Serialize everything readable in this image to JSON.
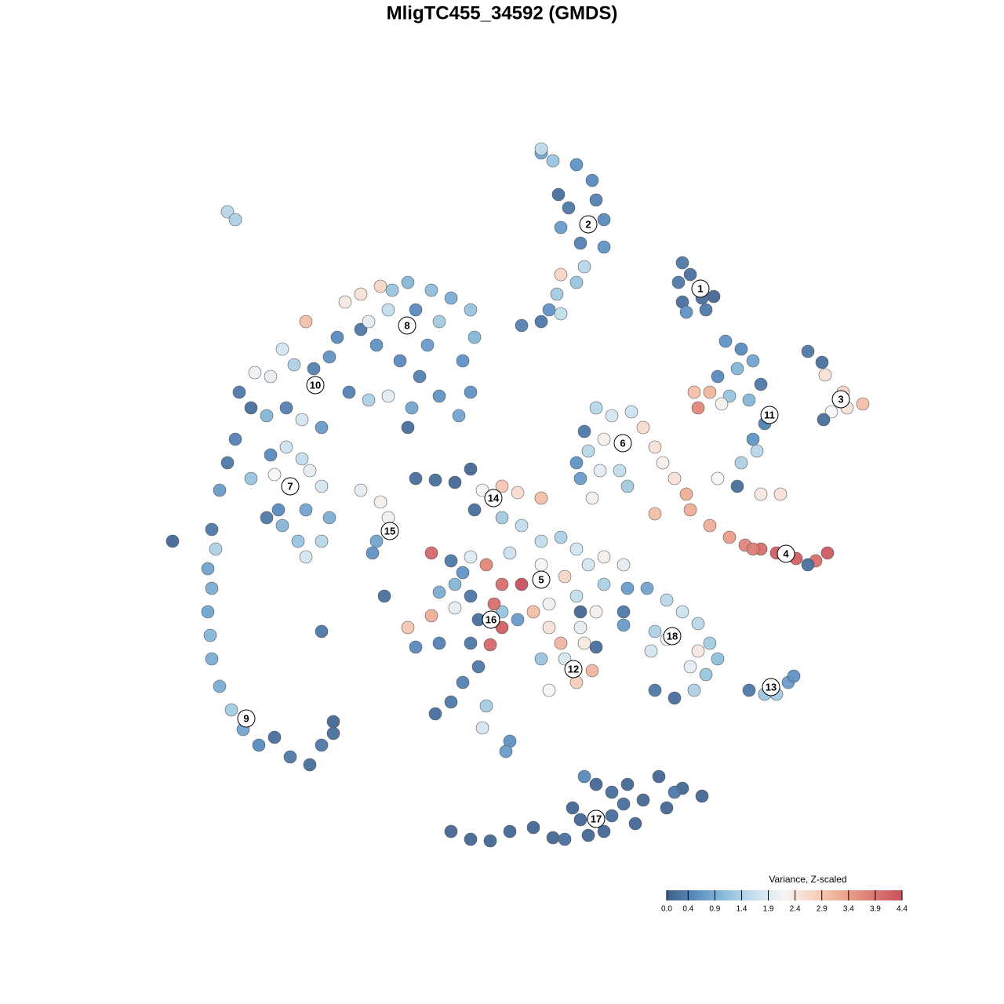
{
  "chart_data": {
    "type": "scatter",
    "title": "MligTC455_34592 (GMDS)",
    "xlim": [
      0,
      1280
    ],
    "ylim": [
      1280,
      0
    ],
    "x": [
      870,
      880,
      865,
      895,
      910,
      870,
      900,
      875,
      690,
      705,
      735,
      755,
      760,
      770,
      725,
      715,
      740,
      770,
      745,
      715,
      735,
      710,
      700,
      715,
      690,
      665,
      690,
      712,
      1030,
      1048,
      1052,
      1075,
      1100,
      1080,
      1060,
      1050,
      925,
      945,
      960,
      940,
      915,
      930,
      955,
      970,
      975,
      960,
      965,
      945,
      915,
      940,
      970,
      995,
      885,
      905,
      890,
      920,
      860,
      875,
      880,
      835,
      905,
      930,
      950,
      970,
      990,
      1015,
      1040,
      1055,
      1030,
      960,
      760,
      780,
      805,
      820,
      835,
      845,
      770,
      750,
      735,
      745,
      790,
      800,
      765,
      740,
      755,
      390,
      440,
      460,
      485,
      500,
      520,
      550,
      575,
      600,
      605,
      590,
      600,
      585,
      560,
      535,
      510,
      480,
      460,
      430,
      420,
      400,
      375,
      360,
      345,
      325,
      305,
      320,
      340,
      365,
      385,
      410,
      445,
      470,
      495,
      525,
      545,
      560,
      530,
      495,
      470,
      300,
      290,
      280,
      320,
      345,
      365,
      385,
      395,
      410,
      350,
      355,
      360,
      390,
      420,
      410,
      390,
      380,
      340,
      220,
      270,
      275,
      265,
      270,
      265,
      268,
      270,
      280,
      295,
      310,
      330,
      350,
      370,
      395,
      410,
      425,
      425,
      460,
      485,
      495,
      480,
      475,
      530,
      555,
      580,
      600,
      615,
      640,
      660,
      690,
      605,
      640,
      665,
      690,
      715,
      650,
      600,
      620,
      550,
      575,
      590,
      580,
      560,
      600,
      640,
      665,
      690,
      720,
      735,
      700,
      680,
      660,
      640,
      630,
      610,
      640,
      600,
      625,
      560,
      530,
      520,
      550,
      580,
      700,
      715,
      720,
      745,
      760,
      740,
      700,
      735,
      755,
      690,
      610,
      590,
      575,
      555,
      620,
      615,
      650,
      645,
      740,
      760,
      750,
      770,
      795,
      770,
      735,
      800,
      825,
      850,
      870,
      890,
      905,
      915,
      900,
      885,
      860,
      835,
      830,
      850,
      835,
      795,
      795,
      880,
      890,
      955,
      975,
      990,
      1005,
      1012,
      575,
      600,
      625,
      650,
      680,
      705,
      720,
      740,
      745,
      760,
      780,
      800,
      820,
      840,
      850,
      870,
      895,
      860,
      810,
      780,
      750,
      770,
      730,
      795,
      290,
      300,
      410,
      490,
      520
    ],
    "y": [
      335,
      350,
      360,
      380,
      378,
      385,
      395,
      398,
      195,
      205,
      210,
      230,
      255,
      280,
      265,
      290,
      310,
      315,
      340,
      350,
      360,
      375,
      395,
      400,
      410,
      415,
      190,
      248,
      448,
      462,
      478,
      500,
      515,
      520,
      525,
      535,
      435,
      445,
      460,
      470,
      480,
      505,
      510,
      490,
      540,
      560,
      575,
      590,
      610,
      620,
      630,
      630,
      500,
      500,
      520,
      515,
      610,
      630,
      650,
      655,
      670,
      685,
      695,
      700,
      705,
      712,
      715,
      705,
      720,
      700,
      520,
      530,
      525,
      545,
      570,
      590,
      560,
      575,
      590,
      550,
      600,
      620,
      600,
      610,
      635,
      410,
      385,
      375,
      365,
      370,
      360,
      370,
      380,
      395,
      430,
      460,
      500,
      530,
      505,
      480,
      460,
      440,
      420,
      430,
      455,
      470,
      465,
      445,
      480,
      475,
      500,
      520,
      530,
      520,
      535,
      545,
      500,
      510,
      505,
      520,
      440,
      410,
      395,
      395,
      410,
      560,
      590,
      625,
      610,
      580,
      570,
      585,
      600,
      620,
      605,
      650,
      670,
      650,
      660,
      690,
      710,
      690,
      660,
      690,
      675,
      700,
      725,
      750,
      780,
      810,
      840,
      875,
      905,
      930,
      950,
      940,
      965,
      975,
      950,
      935,
      920,
      625,
      640,
      660,
      690,
      705,
      610,
      612,
      615,
      598,
      625,
      620,
      628,
      635,
      650,
      660,
      670,
      690,
      685,
      705,
      710,
      720,
      705,
      715,
      730,
      745,
      755,
      760,
      745,
      745,
      720,
      735,
      760,
      770,
      780,
      790,
      780,
      770,
      790,
      800,
      820,
      822,
      820,
      825,
      800,
      785,
      775,
      800,
      820,
      840,
      820,
      825,
      800,
      880,
      870,
      855,
      840,
      850,
      870,
      895,
      910,
      900,
      928,
      945,
      958,
      780,
      780,
      720,
      710,
      720,
      745,
      700,
      750,
      750,
      765,
      780,
      795,
      820,
      840,
      860,
      880,
      890,
      880,
      830,
      815,
      805,
      780,
      797,
      850,
      830,
      880,
      885,
      885,
      870,
      862,
      1060,
      1070,
      1072,
      1060,
      1055,
      1068,
      1070,
      1045,
      990,
      1000,
      1010,
      1000,
      1020,
      990,
      1030,
      1005,
      1015,
      1010,
      1050,
      1040,
      1065,
      1060,
      1030,
      1025,
      270,
      280,
      805,
      760,
      545
    ],
    "values": [
      0.3,
      0.2,
      0.3,
      0.2,
      0.1,
      0.2,
      0.3,
      0.6,
      0.8,
      1.2,
      0.6,
      0.5,
      0.4,
      0.5,
      0.3,
      0.7,
      0.4,
      0.6,
      1.5,
      2.7,
      1.2,
      1.3,
      0.6,
      1.6,
      0.3,
      0.4,
      1.6,
      0.2,
      0.3,
      0.2,
      2.5,
      2.7,
      3.0,
      2.5,
      2.2,
      0.2,
      0.6,
      0.5,
      0.8,
      1.0,
      0.5,
      1.2,
      1.0,
      0.3,
      0.4,
      0.6,
      1.5,
      1.4,
      2.2,
      0.2,
      2.4,
      2.5,
      3.0,
      3.1,
      3.7,
      2.3,
      2.5,
      3.2,
      3.2,
      3.0,
      3.2,
      3.4,
      3.7,
      4.0,
      4.2,
      4.2,
      4.0,
      4.3,
      0.2,
      3.8,
      1.5,
      1.8,
      1.7,
      2.6,
      2.5,
      2.3,
      2.3,
      1.5,
      0.6,
      0.3,
      1.6,
      1.3,
      2.0,
      0.7,
      2.3,
      3.0,
      2.4,
      2.5,
      2.7,
      1.2,
      1.0,
      1.1,
      0.9,
      1.2,
      1.0,
      0.6,
      0.6,
      0.8,
      0.6,
      0.4,
      0.5,
      0.6,
      0.3,
      0.5,
      0.6,
      0.4,
      1.4,
      1.8,
      2.0,
      2.1,
      0.3,
      0.2,
      1.0,
      0.4,
      1.8,
      0.7,
      0.4,
      1.4,
      2.0,
      0.8,
      0.7,
      1.3,
      0.5,
      1.6,
      2.0,
      0.4,
      0.3,
      0.7,
      1.2,
      0.5,
      1.7,
      1.6,
      2.0,
      1.8,
      2.2,
      0.5,
      1.0,
      0.8,
      0.9,
      1.5,
      1.8,
      1.2,
      0.3,
      0.1,
      0.3,
      1.4,
      0.8,
      0.9,
      0.8,
      1.0,
      0.9,
      0.9,
      1.3,
      0.8,
      0.5,
      0.2,
      0.3,
      0.2,
      0.3,
      0.2,
      0.1,
      2.0,
      2.3,
      2.1,
      0.8,
      0.6,
      0.2,
      0.2,
      0.1,
      0.1,
      2.2,
      2.9,
      2.6,
      3.0,
      0.2,
      1.3,
      1.6,
      1.6,
      1.4,
      1.7,
      1.9,
      3.7,
      4.1,
      0.3,
      0.6,
      1.0,
      0.9,
      0.3,
      4.0,
      4.4,
      2.2,
      2.7,
      1.6,
      2.1,
      3.0,
      0.7,
      1.2,
      4.0,
      0.2,
      4.2,
      0.3,
      4.1,
      0.4,
      0.5,
      2.9,
      3.2,
      2.0,
      2.5,
      3.1,
      1.8,
      2.4,
      0.2,
      2.0,
      2.2,
      2.8,
      3.1,
      1.2,
      0.3,
      0.4,
      0.3,
      0.2,
      1.3,
      1.8,
      0.6,
      0.7,
      0.1,
      2.3,
      1.8,
      2.3,
      2.0,
      1.4,
      1.8,
      0.7,
      0.8,
      1.5,
      1.7,
      1.5,
      1.3,
      1.1,
      1.2,
      1.4,
      0.2,
      0.3,
      1.8,
      2.1,
      1.4,
      0.3,
      0.7,
      2.0,
      2.4,
      0.3,
      1.2,
      1.3,
      0.7,
      0.6,
      0.1,
      0.1,
      0.1,
      0.1,
      0.1,
      0.1,
      0.2,
      0.1,
      0.5,
      0.1,
      0.2,
      0.1,
      0.1,
      0.1,
      0.1,
      0.1,
      0.1,
      0.3,
      0.1,
      0.2,
      0.1,
      0.1,
      0.1,
      0.2,
      1.5,
      1.4,
      0.3,
      0.2,
      0.2
    ],
    "cluster_labels": {
      "text": [
        "1",
        "2",
        "3",
        "4",
        "5",
        "6",
        "7",
        "8",
        "9",
        "10",
        "11",
        "12",
        "13",
        "14",
        "15",
        "16",
        "17",
        "18"
      ],
      "x": [
        893,
        750,
        1072,
        1002,
        690,
        794,
        370,
        519,
        314,
        402,
        981,
        731,
        983,
        629,
        497,
        626,
        760,
        857
      ],
      "y": [
        368,
        286,
        509,
        706,
        739,
        565,
        620,
        415,
        916,
        491,
        529,
        853,
        876,
        635,
        677,
        790,
        1044,
        811
      ]
    },
    "colorbar_title": "Variance, Z-scaled",
    "clim": [
      0,
      4.4
    ],
    "colorbar_ticks": [
      {
        "value": 0,
        "label": "0.0"
      },
      0.4,
      0.9,
      1.4,
      1.9,
      2.4,
      2.9,
      3.4,
      3.9,
      4.4
    ],
    "colors": [
      "#3f5e88",
      "#5b8ec2",
      "#8ebfdc",
      "#c8e0ee",
      "#f5f5f5",
      "#f8d3c0",
      "#eda68e",
      "#dc7a72",
      "#c9505e"
    ]
  }
}
